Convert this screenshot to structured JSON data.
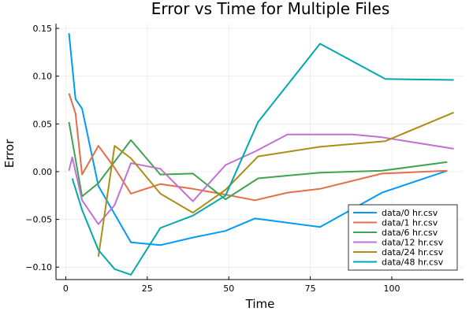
{
  "chart_data": {
    "type": "line",
    "title": "Error vs Time for Multiple Files",
    "xlabel": "Time",
    "ylabel": "Error",
    "xlim": [
      -3,
      122
    ],
    "ylim": [
      -0.113,
      0.155
    ],
    "xticks": [
      0,
      25,
      50,
      75,
      100
    ],
    "xtick_labels": [
      "0",
      "25",
      "50",
      "75",
      "100"
    ],
    "yticks": [
      -0.1,
      -0.05,
      0.0,
      0.05,
      0.1,
      0.15
    ],
    "ytick_labels": [
      "−0.10",
      "−0.05",
      "0.00",
      "0.05",
      "0.10",
      "0.15"
    ],
    "grid": true,
    "legend_position": "bottom-right",
    "series": [
      {
        "name": "data/0 hr.csv",
        "color": "#009AFA",
        "x": [
          1,
          3,
          5,
          10,
          20,
          29,
          39,
          49,
          58,
          78,
          97,
          117
        ],
        "y": [
          0.145,
          0.076,
          0.066,
          -0.015,
          -0.074,
          -0.077,
          -0.069,
          -0.062,
          -0.049,
          -0.058,
          -0.022,
          0.001
        ]
      },
      {
        "name": "data/1 hr.csv",
        "color": "#E36F47",
        "x": [
          1,
          3,
          5,
          10,
          15,
          20,
          29,
          39,
          49,
          58,
          68,
          78,
          97,
          117
        ],
        "y": [
          0.082,
          0.061,
          -0.003,
          0.027,
          0.004,
          -0.023,
          -0.013,
          -0.018,
          -0.024,
          -0.03,
          -0.022,
          -0.018,
          -0.002,
          0.001
        ]
      },
      {
        "name": "data/6 hr.csv",
        "color": "#3EA44E",
        "x": [
          1,
          5,
          10,
          20,
          29,
          39,
          49,
          59,
          78,
          97,
          117
        ],
        "y": [
          0.052,
          -0.026,
          -0.012,
          0.033,
          -0.003,
          -0.002,
          -0.029,
          -0.007,
          -0.001,
          0.001,
          0.01
        ]
      },
      {
        "name": "data/12 hr.csv",
        "color": "#C271D2",
        "x": [
          1,
          2,
          5,
          10,
          15,
          20,
          29,
          39,
          49,
          58,
          68,
          88,
          97,
          119
        ],
        "y": [
          0.001,
          0.015,
          -0.03,
          -0.055,
          -0.035,
          0.009,
          0.003,
          -0.031,
          0.007,
          0.021,
          0.039,
          0.039,
          0.036,
          0.024
        ]
      },
      {
        "name": "data/24 hr.csv",
        "color": "#AC8D18",
        "x": [
          10,
          15,
          20,
          29,
          39,
          49,
          59,
          78,
          98,
          119
        ],
        "y": [
          -0.089,
          0.027,
          0.014,
          -0.023,
          -0.043,
          -0.019,
          0.016,
          0.026,
          0.032,
          0.062
        ]
      },
      {
        "name": "data/48 hr.csv",
        "color": "#00A9AD",
        "x": [
          2,
          5,
          10,
          15,
          20,
          29,
          39,
          49,
          59,
          78,
          98,
          119
        ],
        "y": [
          -0.007,
          -0.04,
          -0.082,
          -0.102,
          -0.108,
          -0.059,
          -0.046,
          -0.025,
          0.052,
          0.134,
          0.097,
          0.096
        ]
      }
    ]
  }
}
